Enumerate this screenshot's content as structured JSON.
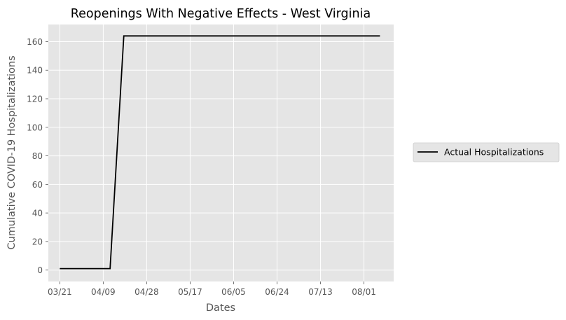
{
  "chart_data": {
    "type": "line",
    "title": "Reopenings With Negative Effects - West Virginia",
    "xlabel": "Dates",
    "ylabel": "Cumulative COVID-19 Hospitalizations",
    "x_ticks": [
      "03/21",
      "04/09",
      "04/28",
      "05/17",
      "06/05",
      "06/24",
      "07/13",
      "08/01"
    ],
    "y_ticks": [
      "0",
      "20",
      "40",
      "60",
      "80",
      "100",
      "120",
      "140",
      "160"
    ],
    "xlim": [
      "2020-03-16",
      "2020-08-14"
    ],
    "ylim": [
      -8,
      172
    ],
    "grid": true,
    "legend_position": "outside-right",
    "series": [
      {
        "name": "Actual Hospitalizations",
        "color": "#000000",
        "x": [
          "2020-03-21",
          "2020-04-12",
          "2020-04-18",
          "2020-08-08"
        ],
        "y": [
          1,
          1,
          164,
          164
        ]
      }
    ]
  }
}
